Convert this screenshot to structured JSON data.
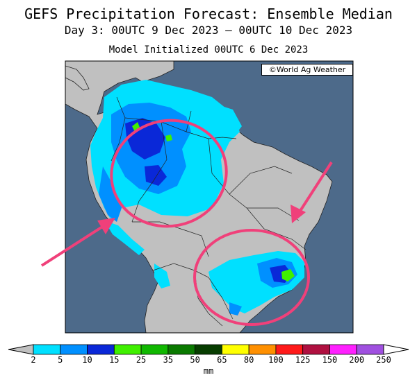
{
  "header": {
    "title": "GEFS Precipitation Forecast: Ensemble Median",
    "period": "Day 3: 00UTC 9 Dec 2023 — 00UTC 10 Dec 2023",
    "init": "Model Initialized 00UTC 6 Dec 2023"
  },
  "credit": "©World Ag Weather",
  "legend": {
    "units": "mm",
    "labels": [
      "2",
      "5",
      "10",
      "15",
      "25",
      "35",
      "50",
      "65",
      "80",
      "100",
      "125",
      "150",
      "200",
      "250"
    ],
    "bins": [
      {
        "range": "2-5",
        "color": "#00e0ff"
      },
      {
        "range": "5-10",
        "color": "#0090ff"
      },
      {
        "range": "10-15",
        "color": "#0a28d8"
      },
      {
        "range": "15-25",
        "color": "#40f000"
      },
      {
        "range": "25-35",
        "color": "#10b800"
      },
      {
        "range": "35-50",
        "color": "#0a7a00"
      },
      {
        "range": "50-65",
        "color": "#073d00"
      },
      {
        "range": "65-80",
        "color": "#ffff00"
      },
      {
        "range": "80-100",
        "color": "#ff9000"
      },
      {
        "range": "100-125",
        "color": "#ff1a1a"
      },
      {
        "range": "125-150",
        "color": "#b01040"
      },
      {
        "range": "150-200",
        "color": "#ff20ff"
      },
      {
        "range": "200-250",
        "color": "#a050e0"
      }
    ],
    "below_color": "#c0c0c0",
    "above_color": "#ffffff"
  },
  "colors": {
    "ocean": "#4d6a8a",
    "land": "#c0c0c0",
    "annotation": "#f0407a"
  }
}
